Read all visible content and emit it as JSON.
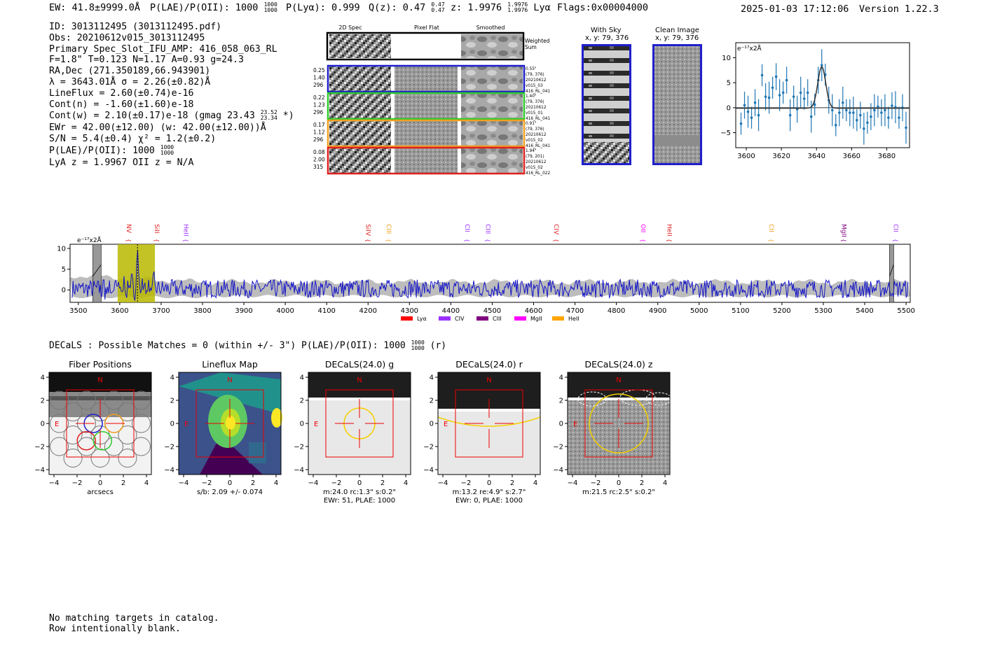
{
  "header": {
    "ew": "EW: 41.8±9999.0Å",
    "plae": "P(LAE)/P(OII): 1000",
    "plae_hi": "1000",
    "plae_lo": "1000",
    "plya": "P(Lyα): 0.999",
    "qz": "Q(z): 0.47",
    "qz_hi": "0.47",
    "qz_lo": "0.47",
    "z": "z: 1.9976",
    "z_hi": "1.9976",
    "z_lo": "1.9976",
    "line": "Lyα",
    "flags": "Flags:0x00004000",
    "datetime": "2025-01-03 17:12:06",
    "version": "Version 1.22.3"
  },
  "info": {
    "id": "ID: 3013112495 (3013112495.pdf)",
    "obs": "Obs: 20210612v015_3013112495",
    "primary": "Primary Spec_Slot_IFU_AMP: 416_058_063_RL",
    "params": "F=1.8\"  T=0.123  N=1.17  A=0.93  g=24.3",
    "radec": "RA,Dec (271.350189,66.943901)",
    "lambda": "λ = 3643.01Å  σ = 2.26(±0.82)Å",
    "lineflux": "LineFlux = 2.60(±0.74)e-16",
    "contn": "Cont(n) = -1.60(±1.60)e-18",
    "contw": "Cont(w) = 2.10(±0.17)e-18 (gmag 23.43",
    "contw_hi": "23.52",
    "contw_lo": "23.34",
    "contw_end": "*)",
    "ewr": "EWr = 42.00(±12.00) (w: 42.00(±12.00))Å",
    "sn": "S/N = 5.4(±0.4)  χ² = 1.2(±0.2)",
    "plae": "P(LAE)/P(OII): 1000",
    "plae_hi": "1000",
    "plae_lo": "1000",
    "lyaz": "LyA z = 1.9967  OII z = N/A"
  },
  "cutouts": {
    "col_2d": "2D Spec",
    "col_flat": "Pixel Flat",
    "col_smooth": "Smoothed",
    "weighted_sum": [
      "Weighted",
      "Sum"
    ],
    "rows": [
      {
        "left": [
          "0.25",
          "1.40",
          "296"
        ],
        "right": [
          "0.55\"",
          "(79, 376)",
          "20210612",
          "v015_03",
          "416_RL_041"
        ],
        "color": "#1f1fcc"
      },
      {
        "left": [
          "0.22",
          "1.23",
          "296"
        ],
        "right": [
          "1.40\"",
          "(79, 376)",
          "20210612",
          "v015_01",
          "416_RL_041"
        ],
        "color": "#2ecc2e"
      },
      {
        "left": [
          "0.17",
          "1.12",
          "296"
        ],
        "right": [
          "0.91\"",
          "(79, 376)",
          "20210612",
          "v015_02",
          "416_RL_041"
        ],
        "color": "#f0a020"
      },
      {
        "left": [
          "0.08",
          "2.00",
          "315"
        ],
        "right": [
          "1.94\"",
          "(79, 201)",
          "20210612",
          "v015_02",
          "416_RL_022"
        ],
        "color": "#e02020"
      }
    ]
  },
  "sky": {
    "title": "With Sky",
    "coords": "x, y: 79, 376"
  },
  "clean": {
    "title": "Clean Image",
    "coords": "x, y: 79, 376"
  },
  "zoom_chart": {
    "unit_label": "e⁻¹⁷x2Å",
    "x_ticks": [
      "3600",
      "3620",
      "3640",
      "3660",
      "3680"
    ],
    "y_ticks": [
      "10",
      "5",
      "0",
      "−5"
    ]
  },
  "spectrum": {
    "unit_label": "e⁻¹⁷x2Å",
    "x_ticks": [
      "3500",
      "3600",
      "3700",
      "3800",
      "3900",
      "4000",
      "4100",
      "4200",
      "4300",
      "4400",
      "4500",
      "4600",
      "4700",
      "4800",
      "4900",
      "5000",
      "5100",
      "5200",
      "5300",
      "5400",
      "5500"
    ],
    "y_ticks": [
      "10",
      "5",
      "0"
    ],
    "line_labels": [
      {
        "name": "NV",
        "w": 3612,
        "color": "#e02020"
      },
      {
        "name": "SiII",
        "w": 3680,
        "color": "#e02020"
      },
      {
        "name": "HeII",
        "w": 3750,
        "color": "#9b30ff"
      },
      {
        "name": "SiIV",
        "w": 4190,
        "color": "#e02020"
      },
      {
        "name": "CIII",
        "w": 4240,
        "color": "#f0a020"
      },
      {
        "name": "CII",
        "w": 4430,
        "color": "#9b30ff"
      },
      {
        "name": "CIII",
        "w": 4480,
        "color": "#9b30ff"
      },
      {
        "name": "CIV",
        "w": 4645,
        "color": "#e02020"
      },
      {
        "name": "OII",
        "w": 4855,
        "color": "#ff00ff"
      },
      {
        "name": "HeII",
        "w": 4918,
        "color": "#e02020"
      },
      {
        "name": "CII",
        "w": 5165,
        "color": "#f0a020"
      },
      {
        "name": "MgII",
        "w": 5340,
        "color": "#800080"
      },
      {
        "name": "CII",
        "w": 5465,
        "color": "#9b30ff"
      }
    ],
    "legend": [
      {
        "label": "Lyα",
        "color": "#ff0000"
      },
      {
        "label": "CIV",
        "color": "#9b30ff"
      },
      {
        "label": "CIII",
        "color": "#800080"
      },
      {
        "label": "MgII",
        "color": "#ff00ff"
      },
      {
        "label": "HeII",
        "color": "#ffa500"
      }
    ]
  },
  "decals": {
    "heading": "DECaLS : Possible Matches = 0 (within +/- 3\")  P(LAE)/P(OII): 1000",
    "heading_hi": "1000",
    "heading_lo": "1000",
    "heading_end": "(r)",
    "panels": [
      {
        "title": "Fiber Positions",
        "captions": [
          "arcsecs"
        ]
      },
      {
        "title": "Lineflux Map",
        "captions": [
          "s/b: 2.09 +/- 0.074"
        ]
      },
      {
        "title": "DECaLS(24.0) g",
        "captions": [
          "m:24.0 rc:1.3\"  s:0.2\"",
          "EWr: 51, PLAE: 1000"
        ]
      },
      {
        "title": "DECaLS(24.0) r",
        "captions": [
          "m:13.2  re:4.9\"  s:2.7\"",
          "EWr: 0, PLAE: 1000"
        ]
      },
      {
        "title": "DECaLS(24.0) z",
        "captions": [
          "m:21.5 rc:2.5\"  s:0.2\""
        ]
      }
    ],
    "axis_ticks_x": [
      "−4",
      "−2",
      "0",
      "2",
      "4"
    ],
    "axis_ticks_y": [
      "4",
      "2",
      "0",
      "−2",
      "−4"
    ],
    "north": "N",
    "east": "E"
  },
  "footer": {
    "line1": "No matching targets in catalog.",
    "line2": "Row intentionally blank."
  },
  "chart_data": [
    {
      "type": "scatter",
      "title": "",
      "xlabel": "",
      "ylabel": "e⁻¹⁷x2Å",
      "xlim": [
        3594,
        3693
      ],
      "ylim": [
        -8,
        13
      ],
      "series": [
        {
          "x": [
            3597,
            3599,
            3601,
            3603,
            3605,
            3607,
            3609,
            3611,
            3613,
            3615,
            3617,
            3619,
            3621,
            3623,
            3625,
            3627,
            3629,
            3631,
            3633,
            3635,
            3637,
            3639,
            3641,
            3643,
            3645,
            3647,
            3649,
            3651,
            3653,
            3655,
            3657,
            3659,
            3661,
            3663,
            3665,
            3667,
            3669,
            3671,
            3673,
            3675,
            3677,
            3679,
            3681,
            3683,
            3685,
            3687,
            3689,
            3691
          ],
          "y": [
            -3.2,
            0.5,
            -0.8,
            -2,
            1,
            -1.5,
            6.5,
            2.2,
            2,
            4,
            6.2,
            2.5,
            3,
            5.5,
            -1.5,
            2.2,
            -0.3,
            3,
            1.8,
            3,
            -1.8,
            0.6,
            5.5,
            8.5,
            6.6,
            1.5,
            -0.5,
            -3.5,
            -1,
            1,
            -0.5,
            -1,
            -1,
            -2.5,
            -1.5,
            -4.2,
            -3,
            -1.8,
            -0.5,
            0.2,
            -1,
            -0.5,
            -2,
            0.4,
            0.1,
            -2,
            0,
            -4
          ]
        }
      ],
      "fit": {
        "continuum": -0.1,
        "peak": 8.3,
        "center": 3643.0,
        "sigma": 2.26
      }
    },
    {
      "type": "line",
      "title": "",
      "xlabel": "",
      "ylabel": "e⁻¹⁷x2Å",
      "xlim": [
        3480,
        5510
      ],
      "ylim": [
        -3,
        11
      ],
      "highlight_band": [
        3595,
        3685
      ],
      "masked_regions": [
        [
          3535,
          3555
        ],
        [
          5460,
          5470
        ]
      ]
    }
  ]
}
